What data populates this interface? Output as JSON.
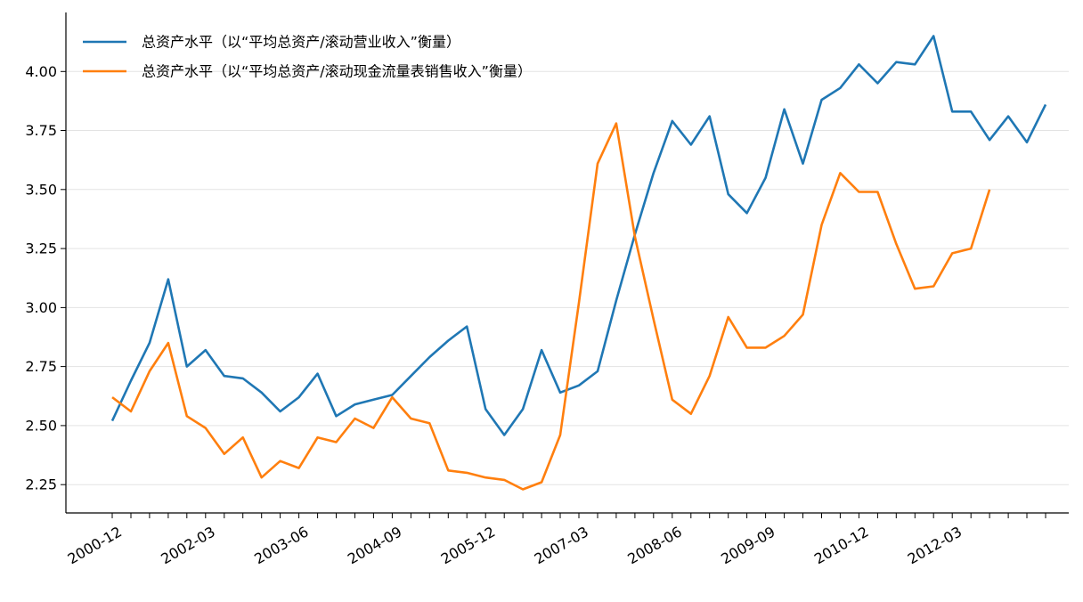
{
  "chart_data": {
    "type": "line",
    "title": "",
    "xlabel": "",
    "ylabel": "",
    "ylim": [
      2.13,
      4.25
    ],
    "yticks": [
      2.25,
      2.5,
      2.75,
      3.0,
      3.25,
      3.5,
      3.75,
      4.0
    ],
    "ytick_labels": [
      "2.25",
      "2.50",
      "2.75",
      "3.00",
      "3.25",
      "3.50",
      "3.75",
      "4.00"
    ],
    "x_tick_labels": [
      {
        "index": 0,
        "label": "2000-12"
      },
      {
        "index": 5,
        "label": "2002-03"
      },
      {
        "index": 10,
        "label": "2003-06"
      },
      {
        "index": 15,
        "label": "2004-09"
      },
      {
        "index": 20,
        "label": "2005-12"
      },
      {
        "index": 25,
        "label": "2007-03"
      },
      {
        "index": 30,
        "label": "2008-06"
      },
      {
        "index": 35,
        "label": "2009-09"
      },
      {
        "index": 40,
        "label": "2010-12"
      },
      {
        "index": 45,
        "label": "2012-03"
      }
    ],
    "x": [
      "2000-12",
      "2001-03",
      "2001-06",
      "2001-09",
      "2001-12",
      "2002-03",
      "2002-06",
      "2002-09",
      "2002-12",
      "2003-03",
      "2003-06",
      "2003-09",
      "2003-12",
      "2004-03",
      "2004-06",
      "2004-09",
      "2004-12",
      "2005-03",
      "2005-06",
      "2005-09",
      "2005-12",
      "2006-03",
      "2006-06",
      "2006-09",
      "2006-12",
      "2007-03",
      "2007-06",
      "2007-09",
      "2007-12",
      "2008-03",
      "2008-06",
      "2008-09",
      "2008-12",
      "2009-03",
      "2009-06",
      "2009-09",
      "2009-12",
      "2010-03",
      "2010-06",
      "2010-09",
      "2010-12",
      "2011-03",
      "2011-06",
      "2011-09",
      "2011-12",
      "2012-03",
      "2012-06",
      "2012-09",
      "2012-12",
      "2013-03",
      "2013-06"
    ],
    "grid": "horizontal",
    "legend_position": "top-left",
    "series": [
      {
        "name": "总资产水平（以“平均总资产/滚动营业收入”衡量）",
        "color": "#1f77b4",
        "values": [
          2.52,
          2.69,
          2.85,
          3.12,
          2.75,
          2.82,
          2.71,
          2.7,
          2.64,
          2.56,
          2.62,
          2.72,
          2.54,
          2.59,
          2.61,
          2.63,
          2.71,
          2.79,
          2.86,
          2.92,
          2.57,
          2.46,
          2.57,
          2.82,
          2.64,
          2.67,
          2.73,
          3.03,
          3.31,
          3.57,
          3.79,
          3.69,
          3.81,
          3.48,
          3.4,
          3.55,
          3.84,
          3.61,
          3.88,
          3.93,
          4.03,
          3.95,
          4.04,
          4.03,
          4.15,
          3.83,
          3.83,
          3.71,
          3.81,
          3.7,
          3.86
        ]
      },
      {
        "name": "总资产水平（以“平均总资产/滚动现金流量表销售收入”衡量）",
        "color": "#ff7f0e",
        "values": [
          2.62,
          2.56,
          2.73,
          2.85,
          2.54,
          2.49,
          2.38,
          2.45,
          2.28,
          2.35,
          2.32,
          2.45,
          2.43,
          2.53,
          2.49,
          2.62,
          2.53,
          2.51,
          2.31,
          2.3,
          2.28,
          2.27,
          2.23,
          2.26,
          2.46,
          3.02,
          3.61,
          3.78,
          3.3,
          2.95,
          2.61,
          2.55,
          2.71,
          2.96,
          2.83,
          2.83,
          2.88,
          2.97,
          3.35,
          3.57,
          3.49,
          3.49,
          3.27,
          3.08,
          3.09,
          3.23,
          3.25,
          3.5,
          null,
          null,
          null
        ]
      }
    ]
  }
}
